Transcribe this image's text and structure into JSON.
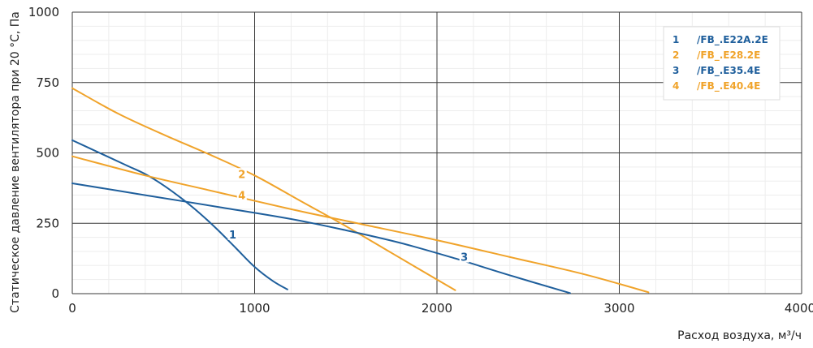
{
  "chart_data": {
    "type": "line",
    "title": "",
    "xlabel": "Расход воздуха, м³/ч",
    "ylabel": "Статическое давление вентилятора при 20 °С, Па",
    "xlim": [
      0,
      4000
    ],
    "ylim": [
      0,
      1000
    ],
    "x_ticks": [
      "0",
      "1000",
      "2000",
      "3000",
      "4000"
    ],
    "y_ticks": [
      "0",
      "250",
      "500",
      "750",
      "1000"
    ],
    "grid": true,
    "legend_position": "top-right",
    "series": [
      {
        "id": "1",
        "name": "/FB_.E22A.2E",
        "color": "#1f5f9c",
        "x": [
          0,
          100,
          200,
          300,
          400,
          500,
          600,
          700,
          800,
          900,
          1000,
          1100,
          1180
        ],
        "y": [
          545,
          515,
          485,
          455,
          425,
          385,
          338,
          285,
          225,
          160,
          95,
          45,
          15
        ]
      },
      {
        "id": "2",
        "name": "/FB_.E28.2E",
        "color": "#f0a32a",
        "x": [
          0,
          250,
          500,
          750,
          1000,
          1250,
          1500,
          1750,
          2000,
          2100
        ],
        "y": [
          730,
          640,
          565,
          495,
          420,
          330,
          240,
          145,
          50,
          12
        ]
      },
      {
        "id": "3",
        "name": "/FB_.E35.4E",
        "color": "#1f5f9c",
        "x": [
          0,
          400,
          800,
          1200,
          1500,
          1800,
          2100,
          2400,
          2730
        ],
        "y": [
          392,
          350,
          308,
          265,
          225,
          180,
          125,
          65,
          2
        ]
      },
      {
        "id": "4",
        "name": "/FB_.E40.4E",
        "color": "#f0a32a",
        "x": [
          0,
          400,
          800,
          1200,
          1600,
          2000,
          2400,
          2800,
          3160
        ],
        "y": [
          488,
          420,
          360,
          300,
          245,
          190,
          130,
          70,
          5
        ]
      }
    ],
    "curve_labels": [
      {
        "text": "1",
        "x": 880,
        "y": 205,
        "series": 0
      },
      {
        "text": "2",
        "x": 930,
        "y": 420,
        "series": 1
      },
      {
        "text": "3",
        "x": 2150,
        "y": 125,
        "series": 2
      },
      {
        "text": "4",
        "x": 930,
        "y": 345,
        "series": 3
      }
    ]
  }
}
